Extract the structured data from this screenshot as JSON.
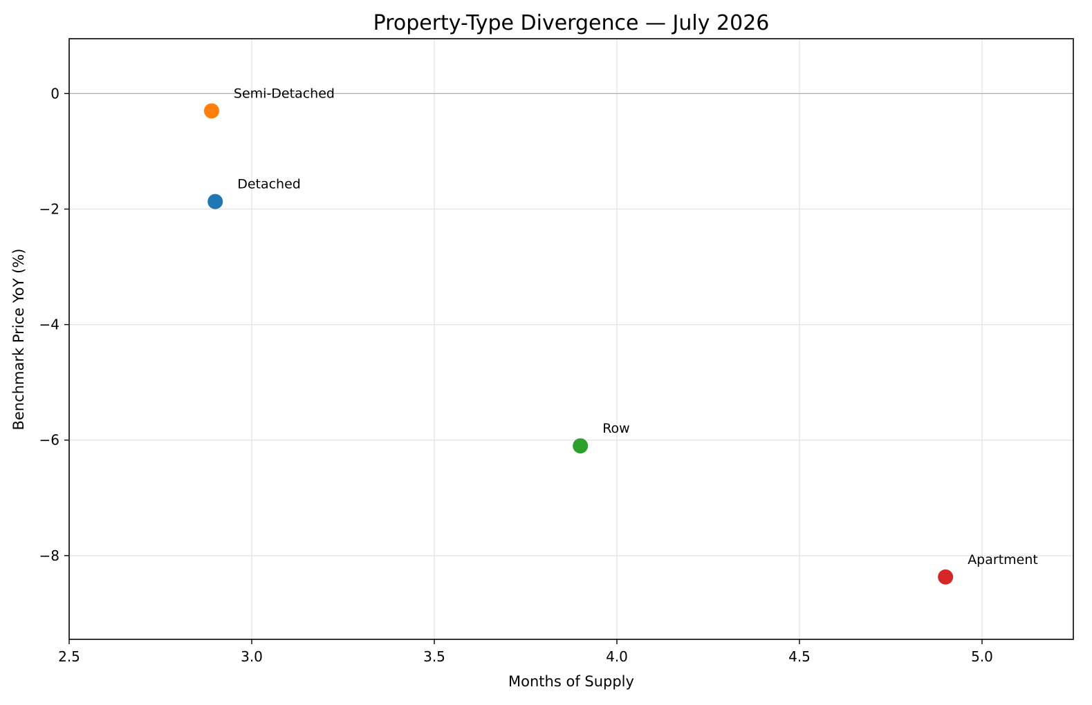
{
  "chart_data": {
    "type": "scatter",
    "title": "Property-Type Divergence — July 2026",
    "xlabel": "Months of Supply",
    "ylabel": "Benchmark Price YoY (%)",
    "xlim": [
      2.5,
      5.25
    ],
    "ylim": [
      -9.45,
      0.95
    ],
    "xticks": [
      2.5,
      3.0,
      3.5,
      4.0,
      4.5,
      5.0
    ],
    "xtick_labels": [
      "2.5",
      "3.0",
      "3.5",
      "4.0",
      "4.5",
      "5.0"
    ],
    "yticks": [
      0,
      -2,
      -4,
      -6,
      -8
    ],
    "ytick_labels": [
      "0",
      "−2",
      "−4",
      "−6",
      "−8"
    ],
    "grid": true,
    "reference_line": {
      "y": 0,
      "color": "#8fb8cc"
    },
    "points": [
      {
        "label": "Detached",
        "x": 2.9,
        "y": -1.87,
        "color": "#1f77b4"
      },
      {
        "label": "Semi-Detached",
        "x": 2.89,
        "y": -0.3,
        "color": "#ff7f0e"
      },
      {
        "label": "Row",
        "x": 3.9,
        "y": -6.1,
        "color": "#2ca02c"
      },
      {
        "label": "Apartment",
        "x": 4.9,
        "y": -8.37,
        "color": "#d62728"
      }
    ]
  }
}
